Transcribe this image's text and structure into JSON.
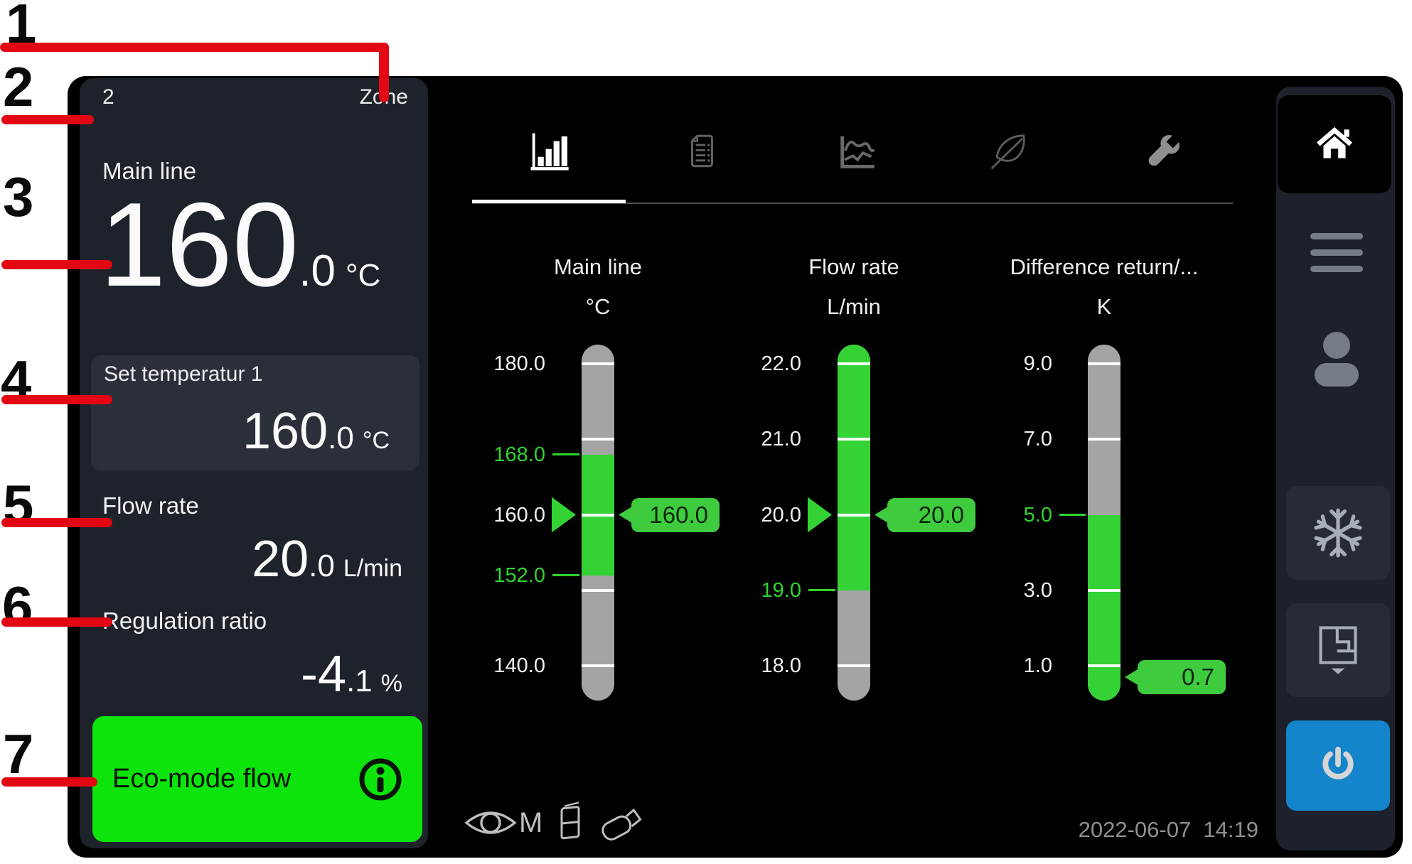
{
  "callouts": [
    "1",
    "2",
    "3",
    "4",
    "5",
    "6",
    "7"
  ],
  "left_panel": {
    "zone_number": "2",
    "zone_label": "Zone",
    "main": {
      "label": "Main line",
      "int": "160",
      "dec": ".0",
      "unit": "°C"
    },
    "set_temp": {
      "label": "Set temperatur 1",
      "int": "160",
      "dec": ".0",
      "unit": "°C"
    },
    "flow": {
      "label": "Flow rate",
      "int": "20",
      "dec": ".0",
      "unit": "L/min"
    },
    "regulation": {
      "label": "Regulation ratio",
      "int": "-4",
      "dec": ".1",
      "unit": "%"
    },
    "eco_button": {
      "label": "Eco-mode flow",
      "icon": "info-icon"
    }
  },
  "tabs": [
    {
      "icon": "bar-chart-icon",
      "active": true
    },
    {
      "icon": "report-icon",
      "active": false
    },
    {
      "icon": "trend-icon",
      "active": false
    },
    {
      "icon": "leaf-icon",
      "active": false
    },
    {
      "icon": "wrench-icon",
      "active": false
    }
  ],
  "sidebar": {
    "home": {
      "icon": "home-icon"
    },
    "menu": {
      "icon": "hamburger-icon"
    },
    "user": {
      "icon": "user-icon"
    },
    "cooling": {
      "icon": "snowflake-icon"
    },
    "zone_select": {
      "icon": "zone-layout-icon"
    },
    "power": {
      "icon": "power-icon",
      "color": "#1484CB"
    }
  },
  "status_bar": {
    "monitor_label": "M",
    "datetime": "2022-06-07  14:19"
  },
  "colors": {
    "eco_green": "#0CE40C",
    "gauge_green": "#35D235",
    "badge_green": "#3ECC3E",
    "power_blue": "#1484CB",
    "callout_red": "#E30613",
    "panel_bg": "#1E222B",
    "tile_bg": "#2A2F3A",
    "button_bg": "#262B35",
    "gauge_gray": "#A4A4A4"
  },
  "chart_data": [
    {
      "type": "linear-gauge",
      "title": "Main line",
      "unit": "°C",
      "scale_ticks": [
        180.0,
        170.0,
        160.0,
        150.0,
        140.0
      ],
      "labels": [
        {
          "text": "180.0",
          "value": 180.0,
          "green": false
        },
        {
          "text": "168.0",
          "value": 168.0,
          "green": true
        },
        {
          "text": "160.0",
          "value": 160.0,
          "green": false
        },
        {
          "text": "152.0",
          "value": 152.0,
          "green": true
        },
        {
          "text": "140.0",
          "value": 140.0,
          "green": false
        }
      ],
      "green_band": [
        152.0,
        168.0
      ],
      "setpoint": 160.0,
      "value": 160.0,
      "value_text": "160.0"
    },
    {
      "type": "linear-gauge",
      "title": "Flow rate",
      "unit": "L/min",
      "scale_ticks": [
        22.0,
        21.0,
        20.0,
        19.0,
        18.0
      ],
      "labels": [
        {
          "text": "22.0",
          "value": 22.0,
          "green": false
        },
        {
          "text": "21.0",
          "value": 21.0,
          "green": false
        },
        {
          "text": "20.0",
          "value": 20.0,
          "green": false
        },
        {
          "text": "19.0",
          "value": 19.0,
          "green": true
        },
        {
          "text": "18.0",
          "value": 18.0,
          "green": false
        }
      ],
      "green_band": [
        19.0,
        23.0
      ],
      "setpoint": 20.0,
      "value": 20.0,
      "value_text": "20.0"
    },
    {
      "type": "linear-gauge",
      "title": "Difference return/...",
      "unit": "K",
      "scale_ticks": [
        9.0,
        7.0,
        5.0,
        3.0,
        1.0
      ],
      "labels": [
        {
          "text": "9.0",
          "value": 9.0,
          "green": false
        },
        {
          "text": "7.0",
          "value": 7.0,
          "green": false
        },
        {
          "text": "5.0",
          "value": 5.0,
          "green": true
        },
        {
          "text": "3.0",
          "value": 3.0,
          "green": false
        },
        {
          "text": "1.0",
          "value": 1.0,
          "green": false
        }
      ],
      "green_band": [
        0.0,
        5.0
      ],
      "setpoint": null,
      "value": 0.7,
      "value_text": "0.7"
    }
  ]
}
